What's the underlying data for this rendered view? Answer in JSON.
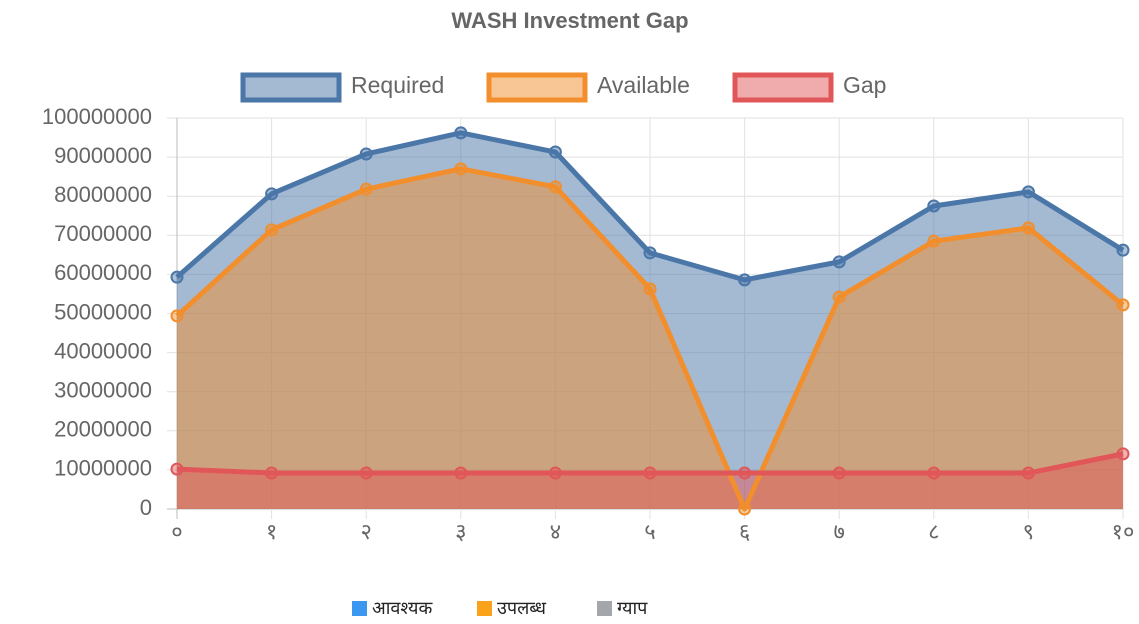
{
  "chart_data": {
    "type": "line",
    "title": "WASH Investment Gap",
    "categories": [
      "०",
      "१",
      "२",
      "३",
      "४",
      "५",
      "६",
      "७",
      "८",
      "९",
      "१०"
    ],
    "series": [
      {
        "name": "Required",
        "color": "#4a76a8",
        "values": [
          59300000,
          80600000,
          90800000,
          96200000,
          91300000,
          65500000,
          58600000,
          63200000,
          77500000,
          81100000,
          66200000
        ]
      },
      {
        "name": "Available",
        "color": "#f28e2b",
        "values": [
          49400000,
          71400000,
          81800000,
          87000000,
          82400000,
          56300000,
          0,
          54200000,
          68500000,
          71900000,
          52200000
        ]
      },
      {
        "name": "Gap",
        "color": "#e15759",
        "values": [
          10200000,
          9200000,
          9200000,
          9200000,
          9200000,
          9200000,
          9200000,
          9200000,
          9200000,
          9200000,
          14100000
        ]
      }
    ],
    "ylim": [
      0,
      100000000
    ],
    "yticks": [
      0,
      10000000,
      20000000,
      30000000,
      40000000,
      50000000,
      60000000,
      70000000,
      80000000,
      90000000,
      100000000
    ],
    "grid": true,
    "fill": true,
    "legend": "top",
    "footer_legend": [
      {
        "label": "आवश्यक",
        "color": "#3b97f0"
      },
      {
        "label": "उपलब्ध",
        "color": "#fba21b"
      },
      {
        "label": "ग्याप",
        "color": "#a3a6ab"
      }
    ]
  }
}
